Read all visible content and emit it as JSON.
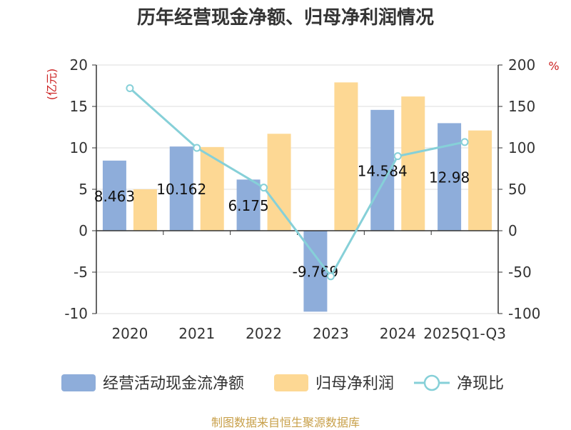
{
  "title": "历年经营现金净额、归母净利润情况",
  "source": "制图数据来自恒生聚源数据库",
  "colors": {
    "bar_cash": "#8eadda",
    "bar_profit": "#fdd894",
    "line_ratio": "#86d0d8",
    "axis_unit": "#cc2222",
    "text": "#333333",
    "grid": "#dddddd",
    "axis": "#333333"
  },
  "chart_data": {
    "type": "bar",
    "categories": [
      "2020",
      "2021",
      "2022",
      "2023",
      "2024",
      "2025Q1-Q3"
    ],
    "series": [
      {
        "name": "经营活动现金流净额",
        "type": "bar",
        "axis": "left",
        "values": [
          8.463,
          10.162,
          6.175,
          -9.769,
          14.584,
          12.98
        ]
      },
      {
        "name": "归母净利润",
        "type": "bar",
        "axis": "left",
        "values": [
          5.0,
          10.1,
          11.7,
          17.9,
          16.2,
          12.1
        ]
      },
      {
        "name": "净现比",
        "type": "line",
        "axis": "right",
        "values": [
          172,
          100,
          52,
          -55,
          90,
          107
        ]
      }
    ],
    "data_labels": [
      "8.463",
      "10.162",
      "6.175",
      "-9.769",
      "14.584",
      "12.98"
    ],
    "y_left": {
      "label": "(亿元)",
      "ylim": [
        -10,
        20
      ],
      "ticks": [
        -10,
        -5,
        0,
        5,
        10,
        15,
        20
      ]
    },
    "y_right": {
      "label": "%",
      "ylim": [
        -100,
        200
      ],
      "ticks": [
        -100,
        -50,
        0,
        50,
        100,
        150,
        200
      ]
    },
    "grid": true,
    "legend_position": "bottom"
  }
}
